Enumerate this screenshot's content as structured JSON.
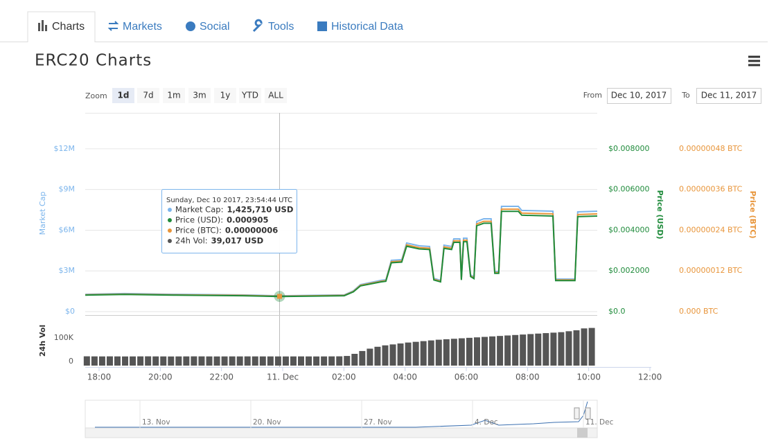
{
  "tabs": [
    "Charts",
    "Markets",
    "Social",
    "Tools",
    "Historical Data"
  ],
  "zoom": {
    "label": "Zoom",
    "buttons": [
      "1d",
      "7d",
      "1m",
      "3m",
      "1y",
      "YTD",
      "ALL"
    ]
  },
  "range": {
    "from_label": "From",
    "from": "Dec 10, 2017",
    "to_label": "To",
    "to": "Dec 11, 2017"
  },
  "chart_data": {
    "type": "line",
    "title": "ERC20 Charts",
    "x": [
      17.55,
      18.84,
      20.43,
      22.69,
      23.89,
      26.01,
      26.31,
      26.54,
      27.21,
      27.37,
      27.55,
      27.89,
      28.05,
      28.46,
      28.8,
      28.94,
      29.16,
      29.27,
      29.52,
      29.59,
      29.79,
      29.84,
      29.91,
      30.02,
      30.14,
      30.25,
      30.34,
      30.57,
      30.81,
      30.93,
      31.06,
      31.15,
      31.7,
      31.81,
      32.83,
      32.92,
      33.55,
      33.64,
      34.28
    ],
    "xlim": [
      17.547,
      36.045
    ],
    "xticks": [
      {
        "value": 18,
        "label": "18:00"
      },
      {
        "value": 20,
        "label": "20:00"
      },
      {
        "value": 22,
        "label": "22:00"
      },
      {
        "value": 24,
        "label": "11. Dec"
      },
      {
        "value": 26,
        "label": "02:00"
      },
      {
        "value": 28,
        "label": "04:00"
      },
      {
        "value": 30,
        "label": "06:00"
      },
      {
        "value": 32,
        "label": "08:00"
      },
      {
        "value": 34,
        "label": "10:00"
      },
      {
        "value": 36,
        "label": "12:00"
      }
    ],
    "ylabel": "Market Cap",
    "ylim": [
      0,
      14650000
    ],
    "yticks": [
      {
        "value": 0,
        "label": "$0"
      },
      {
        "value": 3000000,
        "label": "$3M"
      },
      {
        "value": 6000000,
        "label": "$6M"
      },
      {
        "value": 9000000,
        "label": "$9M"
      },
      {
        "value": 12000000,
        "label": "$12M"
      }
    ],
    "y2label": "Price (USD)",
    "y2lim": [
      0,
      0.009767
    ],
    "y2ticks": [
      {
        "value": 0,
        "label": "$0.0"
      },
      {
        "value": 0.002,
        "label": "$0.002000"
      },
      {
        "value": 0.004,
        "label": "$0.004000"
      },
      {
        "value": 0.006,
        "label": "$0.006000"
      },
      {
        "value": 0.008,
        "label": "$0.008000"
      }
    ],
    "y3label": "Price (BTC)",
    "y3lim": [
      0,
      5.86e-07
    ],
    "y3ticks": [
      {
        "value": 0,
        "label": "0.000 BTC"
      },
      {
        "value": 1.2e-07,
        "label": "0.00000012 BTC"
      },
      {
        "value": 2.4e-07,
        "label": "0.00000024 BTC"
      },
      {
        "value": 3.6e-07,
        "label": "0.00000036 BTC"
      },
      {
        "value": 4.8e-07,
        "label": "0.00000048 BTC"
      }
    ],
    "grid": true,
    "series": [
      {
        "name": "Market Cap",
        "color": "#7cb5ec",
        "axis": "y",
        "values": [
          1276000,
          1330000,
          1276000,
          1230000,
          1170000,
          1230000,
          1530000,
          1990000,
          2300000,
          2350000,
          3780000,
          3830000,
          5060000,
          4850000,
          4800000,
          2450000,
          2300000,
          4900000,
          4800000,
          5360000,
          5360000,
          2450000,
          5410000,
          5410000,
          2710000,
          2550000,
          6640000,
          6840000,
          6840000,
          2960000,
          2960000,
          7760000,
          7760000,
          7460000,
          7400000,
          2400000,
          2400000,
          7350000,
          7400000
        ]
      },
      {
        "name": "Price (USD)",
        "color": "#1f8b3b",
        "axis": "y2",
        "values": [
          0.00081,
          0.000844,
          0.00081,
          0.000781,
          0.000743,
          0.000781,
          0.000971,
          0.001263,
          0.00146,
          0.001492,
          0.0024,
          0.002432,
          0.003213,
          0.003079,
          0.003048,
          0.001556,
          0.00146,
          0.003111,
          0.003048,
          0.003403,
          0.003403,
          0.001556,
          0.003435,
          0.003435,
          0.001721,
          0.001619,
          0.004216,
          0.004343,
          0.004343,
          0.001879,
          0.001879,
          0.004927,
          0.004927,
          0.004737,
          0.004698,
          0.001524,
          0.001524,
          0.004667,
          0.004698
        ]
      },
      {
        "name": "Price (BTC)",
        "color": "#e8953a",
        "axis": "y3",
        "values": [
          4.97e-08,
          5.17e-08,
          4.97e-08,
          4.79e-08,
          4.55e-08,
          4.79e-08,
          5.95e-08,
          7.74e-08,
          8.95e-08,
          9.15e-08,
          1.471e-07,
          1.491e-07,
          1.97e-07,
          1.887e-07,
          1.868e-07,
          9.54e-08,
          8.95e-08,
          1.907e-07,
          1.868e-07,
          2.086e-07,
          2.086e-07,
          9.54e-08,
          2.106e-07,
          2.106e-07,
          1.055e-07,
          9.92e-08,
          2.584e-07,
          2.662e-07,
          2.662e-07,
          1.152e-07,
          1.152e-07,
          3.02e-07,
          3.02e-07,
          2.904e-07,
          2.88e-07,
          9.34e-08,
          9.34e-08,
          2.861e-07,
          2.88e-07
        ]
      }
    ],
    "volume": {
      "label": "24h Vol",
      "color": "#555555",
      "ylim": [
        0,
        214700
      ],
      "yticks": [
        {
          "value": 0,
          "label": "0"
        },
        {
          "value": 100000,
          "label": "100K"
        }
      ],
      "x": [
        17.6,
        17.85,
        18.1,
        18.35,
        18.6,
        18.85,
        19.1,
        19.35,
        19.6,
        19.85,
        20.1,
        20.35,
        20.6,
        20.85,
        21.1,
        21.35,
        21.6,
        21.85,
        22.1,
        22.35,
        22.6,
        22.85,
        23.1,
        23.35,
        23.6,
        23.85,
        24.1,
        24.35,
        24.6,
        24.85,
        25.1,
        25.35,
        25.6,
        25.85,
        26.1,
        26.35,
        26.6,
        26.85,
        27.1,
        27.35,
        27.6,
        27.85,
        28.1,
        28.35,
        28.6,
        28.85,
        29.1,
        29.35,
        29.6,
        29.85,
        30.1,
        30.35,
        30.6,
        30.85,
        31.1,
        31.35,
        31.6,
        31.85,
        32.1,
        32.35,
        32.6,
        32.85,
        33.1,
        33.35,
        33.6,
        33.85,
        34.1
      ],
      "values": [
        39500,
        39200,
        39000,
        39300,
        39100,
        38900,
        39000,
        39200,
        39400,
        39100,
        39000,
        38800,
        39000,
        39100,
        39300,
        39200,
        39000,
        38900,
        39000,
        39100,
        39000,
        39200,
        39100,
        39000,
        39017,
        39000,
        38900,
        39000,
        39100,
        39000,
        38900,
        39000,
        39200,
        39400,
        41000,
        50000,
        62000,
        72000,
        80000,
        86000,
        90000,
        94000,
        98000,
        101000,
        104000,
        107000,
        110000,
        112000,
        114000,
        116000,
        118000,
        120000,
        122000,
        124000,
        126000,
        128000,
        130000,
        132000,
        134000,
        136000,
        138000,
        140000,
        142000,
        146000,
        150000,
        158000,
        160000
      ]
    },
    "tooltip": {
      "header": "Sunday, Dec 10 2017, 23:54:44 UTC",
      "rows": [
        {
          "label": "Market Cap:",
          "value": "1,425,710 USD"
        },
        {
          "label": "Price (USD):",
          "value": "0.000905"
        },
        {
          "label": "Price (BTC):",
          "value": "0.00000006"
        },
        {
          "label": "24h Vol:",
          "value": "39,017 USD"
        }
      ]
    },
    "navigator": {
      "labels": [
        "13. Nov",
        "20. Nov",
        "27. Nov",
        "4. Dec",
        "11. Dec"
      ]
    }
  }
}
